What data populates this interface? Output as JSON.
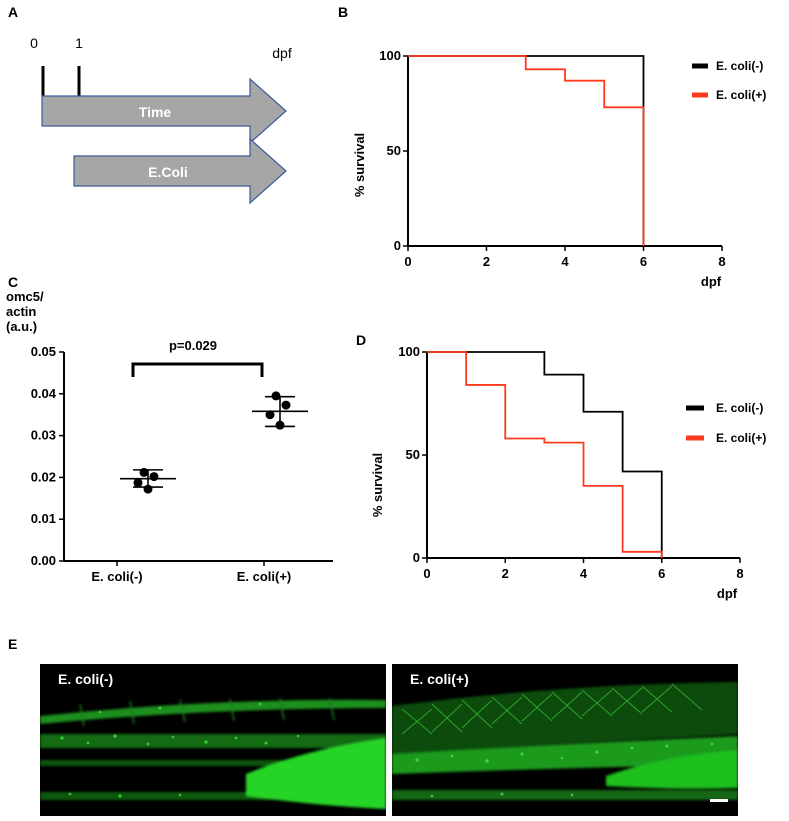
{
  "panels": {
    "a": "A",
    "b": "B",
    "c": "C",
    "d": "D",
    "e": "E"
  },
  "panelA": {
    "ticks": [
      "0",
      "1"
    ],
    "unit": "dpf",
    "arrow1": "Time",
    "arrow2": "E.Coli",
    "colors": {
      "arrow_fill": "#a6a6a6",
      "arrow_stroke": "#3b5a9a"
    }
  },
  "colors": {
    "neg": "#000000",
    "pos": "#ff3b1f"
  },
  "chart_data": [
    {
      "id": "B",
      "type": "line",
      "step": true,
      "xlabel": "dpf",
      "ylabel": "% survival",
      "xlim": [
        0,
        8
      ],
      "ylim": [
        0,
        100
      ],
      "xticks": [
        "0",
        "2",
        "4",
        "6",
        "8"
      ],
      "yticks": [
        "0",
        "50",
        "100"
      ],
      "legend_position": "right",
      "series": [
        {
          "name": "E. coli(-)",
          "color": "#000000",
          "x": [
            0,
            6,
            6
          ],
          "y": [
            100,
            100,
            0
          ]
        },
        {
          "name": "E. coli(+)",
          "color": "#ff3b1f",
          "x": [
            0,
            3,
            3,
            4,
            4,
            5,
            5,
            6,
            6
          ],
          "y": [
            100,
            100,
            93,
            93,
            87,
            87,
            73,
            73,
            0
          ]
        }
      ]
    },
    {
      "id": "C",
      "type": "scatter",
      "ylabel_lines": [
        "omc5/",
        "actin",
        "(a.u.)"
      ],
      "ylim": [
        0,
        0.05
      ],
      "yticks": [
        "0.00",
        "0.01",
        "0.02",
        "0.03",
        "0.04",
        "0.05"
      ],
      "categories": [
        "E. coli(-)",
        "E. coli(+)"
      ],
      "points": [
        [
          0.0212,
          0.0202,
          0.0187,
          0.0172
        ],
        [
          0.0395,
          0.0373,
          0.035,
          0.0325
        ]
      ],
      "mean": [
        0.0197,
        0.0358
      ],
      "sd_low": [
        0.0177,
        0.0322
      ],
      "sd_high": [
        0.0218,
        0.0393
      ],
      "annotation": "p=0.029"
    },
    {
      "id": "D",
      "type": "line",
      "step": true,
      "xlabel": "dpf",
      "ylabel": "% survival",
      "xlim": [
        0,
        8
      ],
      "ylim": [
        0,
        100
      ],
      "xticks": [
        "0",
        "2",
        "4",
        "6",
        "8"
      ],
      "yticks": [
        "0",
        "50",
        "100"
      ],
      "legend_position": "right",
      "series": [
        {
          "name": "E. coli(-)",
          "color": "#000000",
          "x": [
            0,
            3,
            3,
            4,
            4,
            5,
            5,
            6,
            6
          ],
          "y": [
            100,
            100,
            89,
            89,
            71,
            71,
            42,
            42,
            0
          ]
        },
        {
          "name": "E. coli(+)",
          "color": "#ff3b1f",
          "x": [
            0,
            1,
            1,
            2,
            2,
            3,
            3,
            4,
            4,
            5,
            5,
            6,
            6
          ],
          "y": [
            100,
            100,
            84,
            84,
            58,
            58,
            56,
            56,
            35,
            35,
            3,
            3,
            0
          ]
        }
      ]
    }
  ],
  "panelE": {
    "left_label": "E. coli(-)",
    "right_label": "E. coli(+)"
  }
}
